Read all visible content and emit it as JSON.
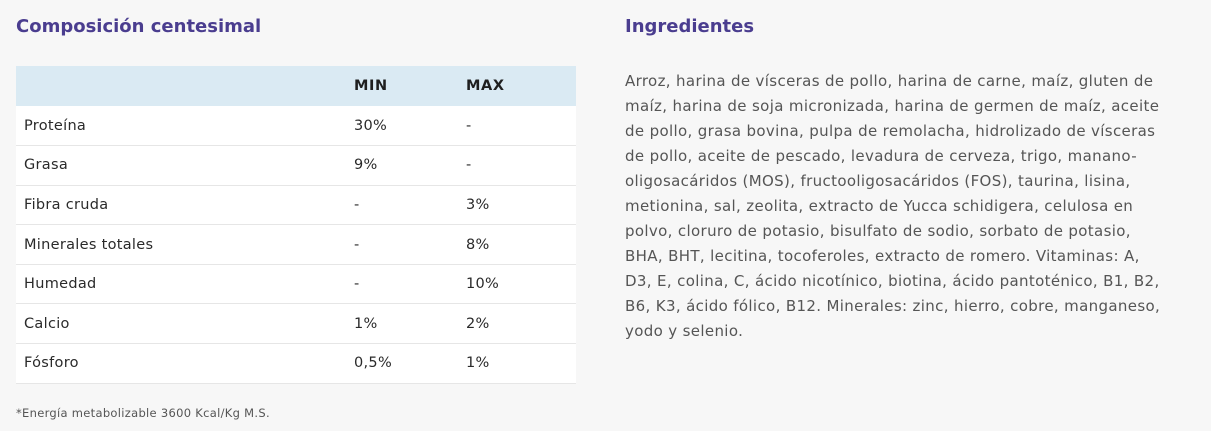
{
  "composition": {
    "title": "Composición centesimal",
    "headers": [
      "",
      "MIN",
      "MAX"
    ],
    "rows": [
      {
        "name": "Proteína",
        "min": "30%",
        "max": "-"
      },
      {
        "name": "Grasa",
        "min": "9%",
        "max": "-"
      },
      {
        "name": "Fibra cruda",
        "min": "-",
        "max": "3%"
      },
      {
        "name": "Minerales totales",
        "min": "-",
        "max": "8%"
      },
      {
        "name": "Humedad",
        "min": "-",
        "max": "10%"
      },
      {
        "name": "Calcio",
        "min": "1%",
        "max": "2%"
      },
      {
        "name": "Fósforo",
        "min": "0,5%",
        "max": "1%"
      }
    ],
    "footnote": "*Energía metabolizable 3600 Kcal/Kg M.S."
  },
  "ingredients": {
    "title": "Ingredientes",
    "text": "Arroz, harina de vísceras de pollo, harina de carne, maíz, gluten de maíz, harina de soja micronizada, harina de germen de maíz, aceite de pollo, grasa bovina, pulpa de remolacha, hidrolizado de vísceras de pollo, aceite de pescado, levadura de cerveza, trigo, manano-oligosacáridos (MOS), fructooligosacáridos (FOS), taurina, lisina, metionina, sal, zeolita, extracto de Yucca schidigera, celulosa en polvo, cloruro de potasio, bisulfato de sodio, sorbato de potasio, BHA, BHT, lecitina, tocoferoles, extracto de romero. Vitaminas: A, D3, E, colina, C, ácido nicotínico, biotina, ácido pantoténico, B1, B2, B6, K3, ácido fólico, B12. Minerales: zinc, hierro, cobre, manganeso, yodo y selenio."
  }
}
